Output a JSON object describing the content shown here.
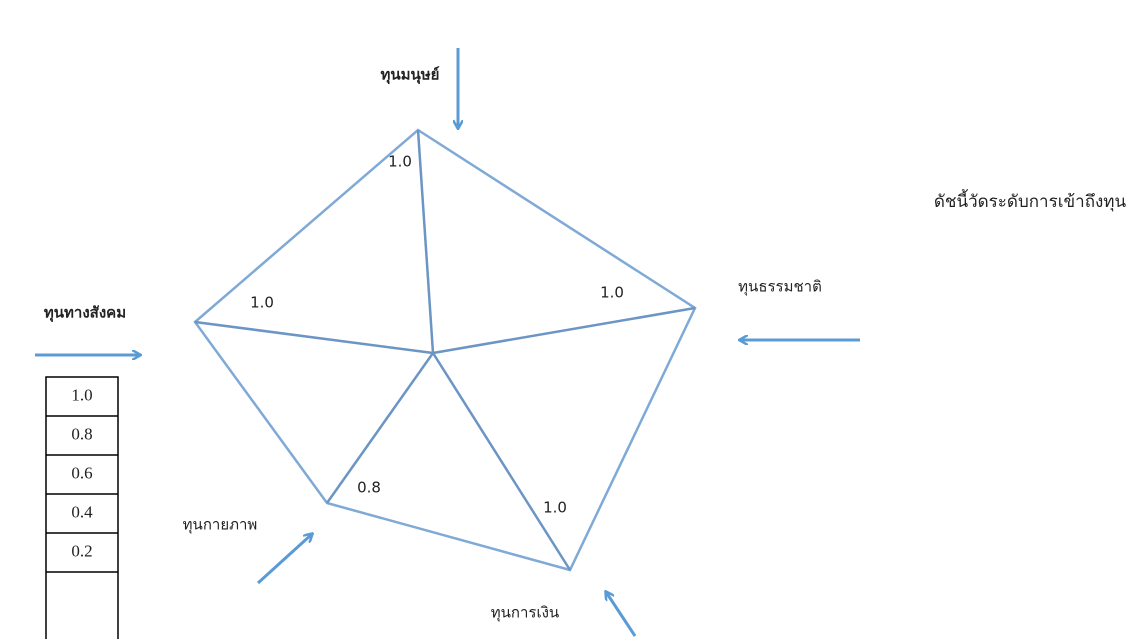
{
  "diagram": {
    "caption": "ดัชนี้วัดระดับการเข้าถึงทุน",
    "nodes": [
      {
        "label": "ทุนมนุษย์",
        "value": "1.0"
      },
      {
        "label": "ทุนธรรมชาติ",
        "value": "1.0"
      },
      {
        "label": "ทุนการเงิน",
        "value": "1.0"
      },
      {
        "label": "ทุนกายภาพ",
        "value": "0.8"
      },
      {
        "label": "ทุนทางสังคม",
        "value": "1.0"
      }
    ],
    "scale": [
      "1.0",
      "0.8",
      "0.6",
      "0.4",
      "0.2"
    ]
  }
}
